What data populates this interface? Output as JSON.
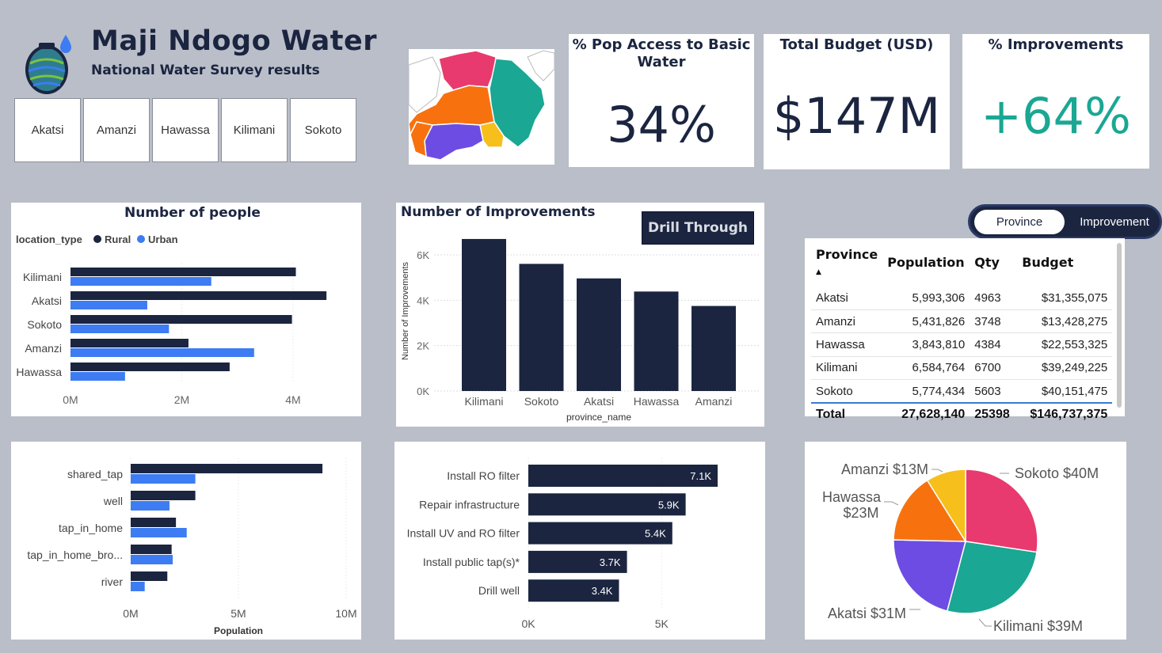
{
  "header": {
    "title": "Maji Ndogo Water",
    "subtitle": "National Water Survey results"
  },
  "slicer": {
    "provinces": [
      "Akatsi",
      "Amanzi",
      "Hawassa",
      "Kilimani",
      "Sokoto"
    ]
  },
  "kpis": {
    "access": {
      "title_line1": "% Pop Access to Basic",
      "title_line2": "Water",
      "value": "34%"
    },
    "budget": {
      "title": "Total Budget (USD)",
      "value": "$147M"
    },
    "improvements": {
      "title": "% Improvements",
      "value": "+64%"
    }
  },
  "colors": {
    "navy": "#1b2540",
    "blue": "#3d7cf2",
    "teal": "#1aa793",
    "pink": "#e83a6e",
    "orange": "#f7720e",
    "purple": "#6d4ce3",
    "yellow": "#f6bf1c"
  },
  "toggle": {
    "active": "Province",
    "inactive": "Improvement"
  },
  "drill_button": "Drill Through",
  "table": {
    "headers": [
      "Province",
      "Population",
      "Qty",
      "Budget"
    ],
    "rows": [
      [
        "Akatsi",
        "5,993,306",
        "4963",
        "$31,355,075"
      ],
      [
        "Amanzi",
        "5,431,826",
        "3748",
        "$13,428,275"
      ],
      [
        "Hawassa",
        "3,843,810",
        "4384",
        "$22,553,325"
      ],
      [
        "Kilimani",
        "6,584,764",
        "6700",
        "$39,249,225"
      ],
      [
        "Sokoto",
        "5,774,434",
        "5603",
        "$40,151,475"
      ]
    ],
    "total": [
      "Total",
      "27,628,140",
      "25398",
      "$146,737,375"
    ]
  },
  "chart_data": [
    {
      "id": "people",
      "type": "bar",
      "orientation": "horizontal",
      "title": "Number of people",
      "legend_title": "location_type",
      "categories": [
        "Kilimani",
        "Akatsi",
        "Sokoto",
        "Amanzi",
        "Hawassa"
      ],
      "series": [
        {
          "name": "Rural",
          "values": [
            4.05,
            4.6,
            3.98,
            2.12,
            2.86
          ]
        },
        {
          "name": "Urban",
          "values": [
            2.53,
            1.38,
            1.77,
            3.3,
            0.98
          ]
        }
      ],
      "xticks": [
        "0M",
        "2M",
        "4M"
      ],
      "xlim": [
        0,
        6
      ]
    },
    {
      "id": "improvements",
      "type": "bar",
      "title": "Number of Improvements",
      "xlabel": "province_name",
      "ylabel": "Number of Improvements",
      "categories": [
        "Kilimani",
        "Sokoto",
        "Akatsi",
        "Hawassa",
        "Amanzi"
      ],
      "values": [
        6700,
        5603,
        4963,
        4384,
        3748
      ],
      "yticks": [
        "0K",
        "2K",
        "4K",
        "6K"
      ],
      "ylim": [
        0,
        7000
      ]
    },
    {
      "id": "sources",
      "type": "bar",
      "orientation": "horizontal",
      "xlabel": "Population",
      "categories": [
        "shared_tap",
        "well",
        "tap_in_home",
        "tap_in_home_bro...",
        "river"
      ],
      "series": [
        {
          "name": "Rural",
          "values": [
            8.9,
            3.0,
            2.1,
            1.9,
            1.7
          ]
        },
        {
          "name": "Urban",
          "values": [
            3.0,
            1.8,
            2.6,
            1.95,
            0.65
          ]
        }
      ],
      "xticks": [
        "0M",
        "5M",
        "10M"
      ],
      "xlim": [
        0,
        10
      ]
    },
    {
      "id": "types",
      "type": "bar",
      "orientation": "horizontal",
      "categories": [
        "Install RO filter",
        "Repair infrastructure",
        "Install UV and RO filter",
        "Install public tap(s)*",
        "Drill well"
      ],
      "values": [
        7100,
        5900,
        5400,
        3700,
        3400
      ],
      "labels": [
        "7.1K",
        "5.9K",
        "5.4K",
        "3.7K",
        "3.4K"
      ],
      "xticks": [
        "0K",
        "5K"
      ],
      "xlim": [
        0,
        7400
      ]
    },
    {
      "id": "budget_pie",
      "type": "pie",
      "categories": [
        "Sokoto",
        "Kilimani",
        "Akatsi",
        "Hawassa",
        "Amanzi"
      ],
      "values": [
        40,
        39,
        31,
        23,
        13
      ],
      "labels": [
        "Sokoto $40M",
        "Kilimani $39M",
        "Akatsi $31M",
        "Hawassa",
        "Amanzi $13M"
      ],
      "label_extra": {
        "Hawassa": "$23M"
      }
    }
  ]
}
